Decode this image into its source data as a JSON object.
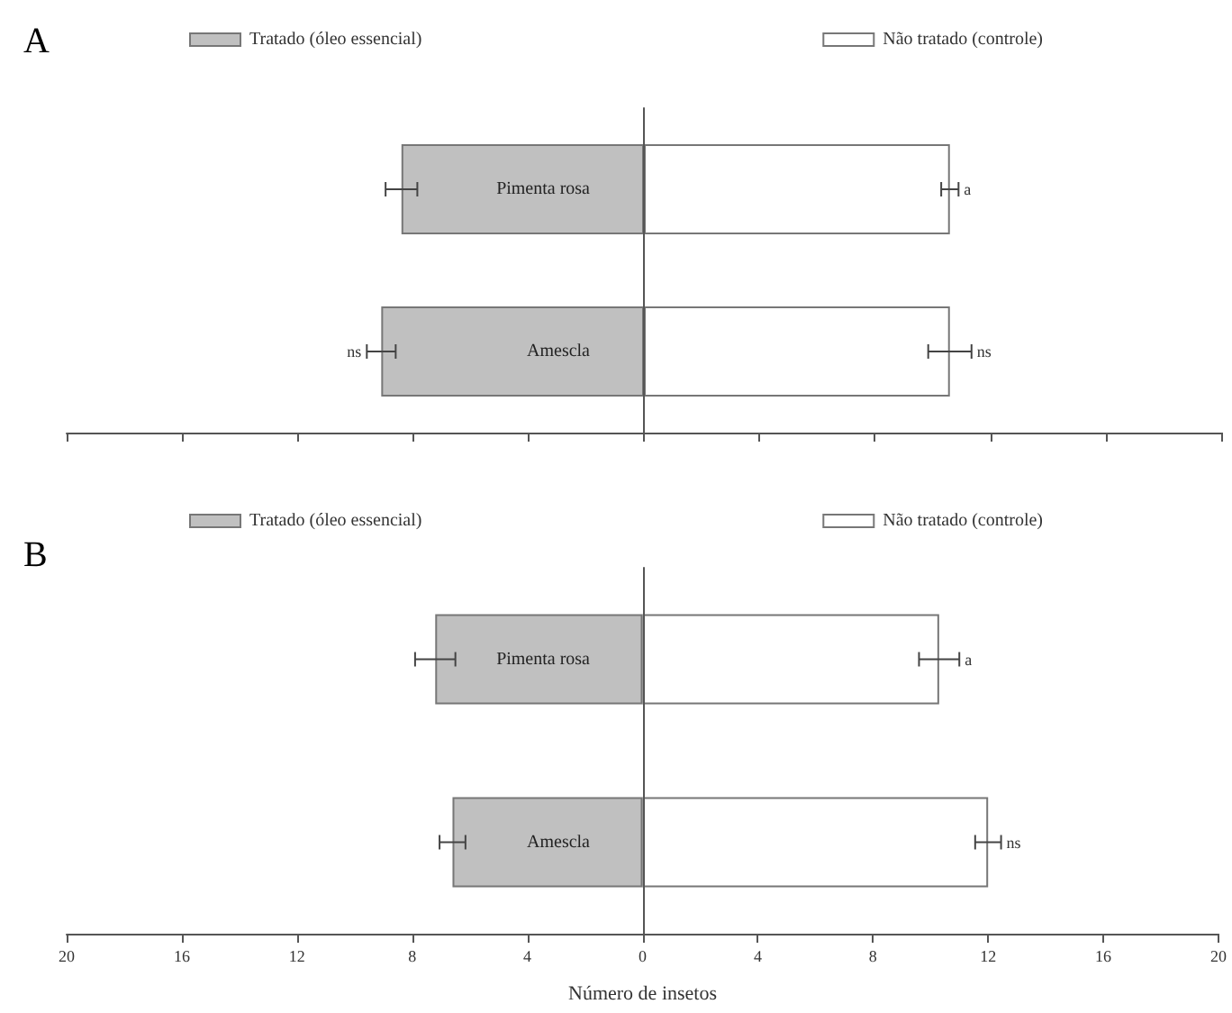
{
  "chart_data": [
    {
      "type": "bar",
      "title": "A",
      "orientation": "horizontal",
      "stacked": true,
      "categories": [
        "Pimenta rosa",
        "Amescla"
      ],
      "series": [
        {
          "name": "Tratado (óleo essencial)",
          "color": "#c0c0c0",
          "values": [
            -8.4,
            -9.1
          ],
          "errors": [
            0.55,
            0.5
          ]
        },
        {
          "name": "Não tratado (controle)",
          "color": "#ffffff",
          "values": [
            10.6,
            10.6
          ],
          "errors": [
            0.3,
            0.75
          ]
        }
      ],
      "xlim": [
        -20,
        20
      ],
      "xticks": [
        -20,
        -16,
        -12,
        -8,
        -4,
        0,
        4,
        8,
        12,
        16,
        20
      ],
      "tick_labels": "y",
      "legend": "top",
      "annotations": [
        {
          "text": "a",
          "x": 10.9,
          "y": "Pimenta rosa"
        },
        {
          "text": "ns",
          "x": -9.6,
          "y": "Amescla"
        },
        {
          "text": "ns",
          "x": 11.35,
          "y": "Amescla"
        }
      ]
    },
    {
      "type": "bar",
      "title": "B",
      "orientation": "horizontal",
      "stacked": true,
      "categories": [
        "Pimenta rosa",
        "Amescla"
      ],
      "series": [
        {
          "name": "Tratado (óleo essencial)",
          "color": "#c0c0c0",
          "values": [
            -7.2,
            -6.6
          ],
          "errors": [
            0.7,
            0.45
          ]
        },
        {
          "name": "Não tratado (controle)",
          "color": "#ffffff",
          "values": [
            10.3,
            12.0
          ],
          "errors": [
            0.7,
            0.45
          ]
        }
      ],
      "xlabel": "Número de insetos",
      "xlim": [
        -20,
        20
      ],
      "xticks": [
        {
          "value": -20,
          "label": "20"
        },
        {
          "value": -16,
          "label": "16"
        },
        {
          "value": -12,
          "label": "12"
        },
        {
          "value": -8,
          "label": "8"
        },
        {
          "value": -4,
          "label": "4"
        },
        0,
        4,
        8,
        12,
        16,
        20
      ],
      "legend": "top",
      "annotations": [
        {
          "text": "a",
          "x": 11.0,
          "y": "Pimenta rosa"
        },
        {
          "text": "ns",
          "x": 12.45,
          "y": "Amescla"
        }
      ]
    }
  ]
}
